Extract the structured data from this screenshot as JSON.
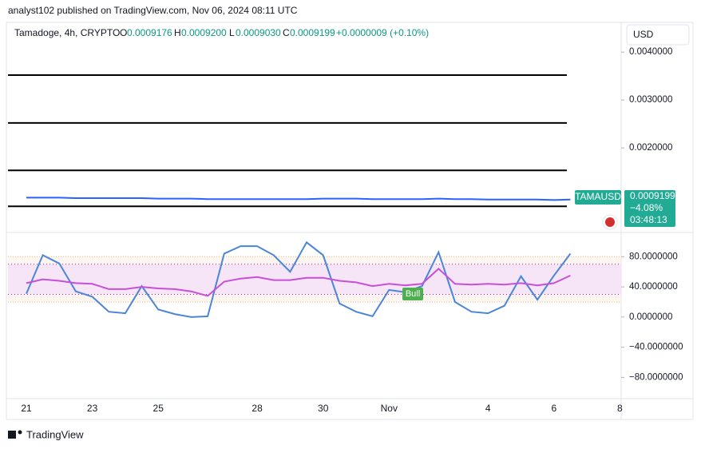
{
  "header": {
    "author_line": "analyst102 published on TradingView.com, Nov 06, 2024 08:11 UTC",
    "symbol": "Tamadoge, 4h, CRYPTO",
    "open_label": "O",
    "open": "0.0009176",
    "high_label": "H",
    "high": "0.0009200",
    "low_label": "L",
    "low": "0.0009030",
    "close_label": "C",
    "close": "0.0009199",
    "change": "+0.0000009 (+0.10%)",
    "currency": "USD"
  },
  "badge": {
    "symbol": "TAMAUSD",
    "price": "0.0009199",
    "change": "−4.08%",
    "countdown": "03:48:13"
  },
  "footer": {
    "brand": "TradingView"
  },
  "chart_data": [
    {
      "type": "line",
      "categories": [
        "21",
        null,
        null,
        null,
        "23",
        null,
        null,
        null,
        "25",
        null,
        null,
        null,
        null,
        null,
        "28",
        null,
        null,
        null,
        "30",
        null,
        null,
        null,
        "Nov",
        null,
        null,
        null,
        null,
        null,
        "4",
        null,
        null,
        null,
        "6",
        null,
        null,
        null,
        "8"
      ],
      "series": [
        {
          "color": "#2962ff",
          "values": [
            0.00096,
            0.00096,
            0.00096,
            0.00095,
            0.00095,
            0.00095,
            0.00095,
            0.00095,
            0.00094,
            0.00094,
            0.00094,
            0.00093,
            0.00093,
            0.00093,
            0.00093,
            0.00093,
            0.00093,
            0.00093,
            0.00094,
            0.00094,
            0.00094,
            0.00093,
            0.00093,
            0.00093,
            0.00093,
            0.00094,
            0.00093,
            0.00093,
            0.00092,
            0.00092,
            0.00092,
            0.00092,
            0.00091,
            0.0009199,
            null,
            null,
            null
          ]
        }
      ],
      "levels": [
        0.00352,
        0.00252,
        0.00153,
        0.00078
      ],
      "level_color": "#000000",
      "ylim": [
        0.00025,
        0.00462
      ],
      "yticks": [
        {
          "value": 0.004,
          "label": "0.0040000"
        },
        {
          "value": 0.003,
          "label": "0.0030000"
        },
        {
          "value": 0.002,
          "label": "0.0020000"
        }
      ]
    },
    {
      "type": "line",
      "series": [
        {
          "color": "#4a86d8",
          "values": [
            31,
            82,
            71,
            34,
            27,
            7,
            5,
            41,
            10,
            4,
            0,
            1,
            84,
            94,
            94,
            82,
            60,
            99,
            82,
            18,
            7,
            1,
            36,
            33,
            41,
            86,
            20,
            7,
            5,
            15,
            54,
            23,
            55,
            84,
            null,
            null,
            null
          ]
        },
        {
          "color": "#c84fd8",
          "values": [
            45,
            50,
            48,
            45,
            44,
            37,
            37,
            40,
            38,
            37,
            34,
            28,
            47,
            51,
            53,
            49,
            49,
            52,
            52,
            48,
            46,
            41,
            44,
            42,
            44,
            64,
            44,
            43,
            44,
            43,
            45,
            42,
            45,
            55,
            null,
            null,
            null
          ]
        }
      ],
      "bands": [
        70,
        30
      ],
      "outer_bands": [
        80,
        20
      ],
      "annotation": "Bull",
      "ylim": [
        -106,
        111
      ],
      "yticks": [
        {
          "value": 80,
          "label": "80.0000000"
        },
        {
          "value": 40,
          "label": "40.0000000"
        },
        {
          "value": 0,
          "label": "0.0000000"
        },
        {
          "value": -40,
          "label": "−40.0000000"
        },
        {
          "value": -80,
          "label": "−80.0000000"
        }
      ]
    }
  ]
}
